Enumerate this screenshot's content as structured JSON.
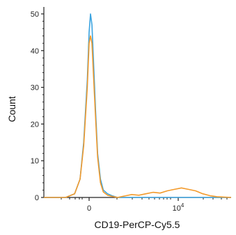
{
  "chart_data": {
    "type": "line",
    "title": "",
    "xlabel": "CD19-PerCP-Cy5.5",
    "ylabel": "Count",
    "ylim": [
      0,
      50
    ],
    "y_ticks": [
      "0",
      "10",
      "20",
      "30",
      "40",
      "50"
    ],
    "x_ticks": [
      {
        "base": "0",
        "exp": ""
      },
      {
        "base": "10",
        "exp": "4"
      }
    ],
    "x_scale": "biexponential",
    "x_range_fraction_note": "",
    "series": [
      {
        "color": "#3aa3e0",
        "x": [
          -0.25,
          -0.13,
          -0.08,
          -0.05,
          -0.03,
          -0.01,
          0.0,
          0.01,
          0.02,
          0.03,
          0.045,
          0.06,
          0.08,
          0.1,
          0.13,
          0.16,
          0.2,
          0.3,
          0.45,
          0.6,
          0.75,
          0.9,
          1.0
        ],
        "y": [
          0,
          0,
          1,
          5,
          15,
          32,
          45,
          50,
          47,
          38,
          24,
          12,
          5,
          2,
          1,
          0.5,
          0,
          0,
          0,
          0,
          0,
          0,
          0
        ]
      },
      {
        "color": "#f39a2b",
        "x": [
          -0.25,
          -0.13,
          -0.08,
          -0.05,
          -0.03,
          -0.01,
          0.0,
          0.01,
          0.02,
          0.03,
          0.045,
          0.06,
          0.08,
          0.1,
          0.13,
          0.16,
          0.2,
          0.25,
          0.3,
          0.35,
          0.4,
          0.45,
          0.5,
          0.55,
          0.6,
          0.65,
          0.7,
          0.75,
          0.8,
          0.85,
          0.9,
          1.0
        ],
        "y": [
          0,
          0,
          1,
          5,
          14,
          30,
          42,
          44,
          42,
          34,
          22,
          11,
          4,
          1.5,
          0.6,
          0.3,
          0,
          0.4,
          0.8,
          0.6,
          1.0,
          1.4,
          1.2,
          1.8,
          2.2,
          2.6,
          2.2,
          1.8,
          1.0,
          0.5,
          0.2,
          0
        ]
      }
    ]
  }
}
